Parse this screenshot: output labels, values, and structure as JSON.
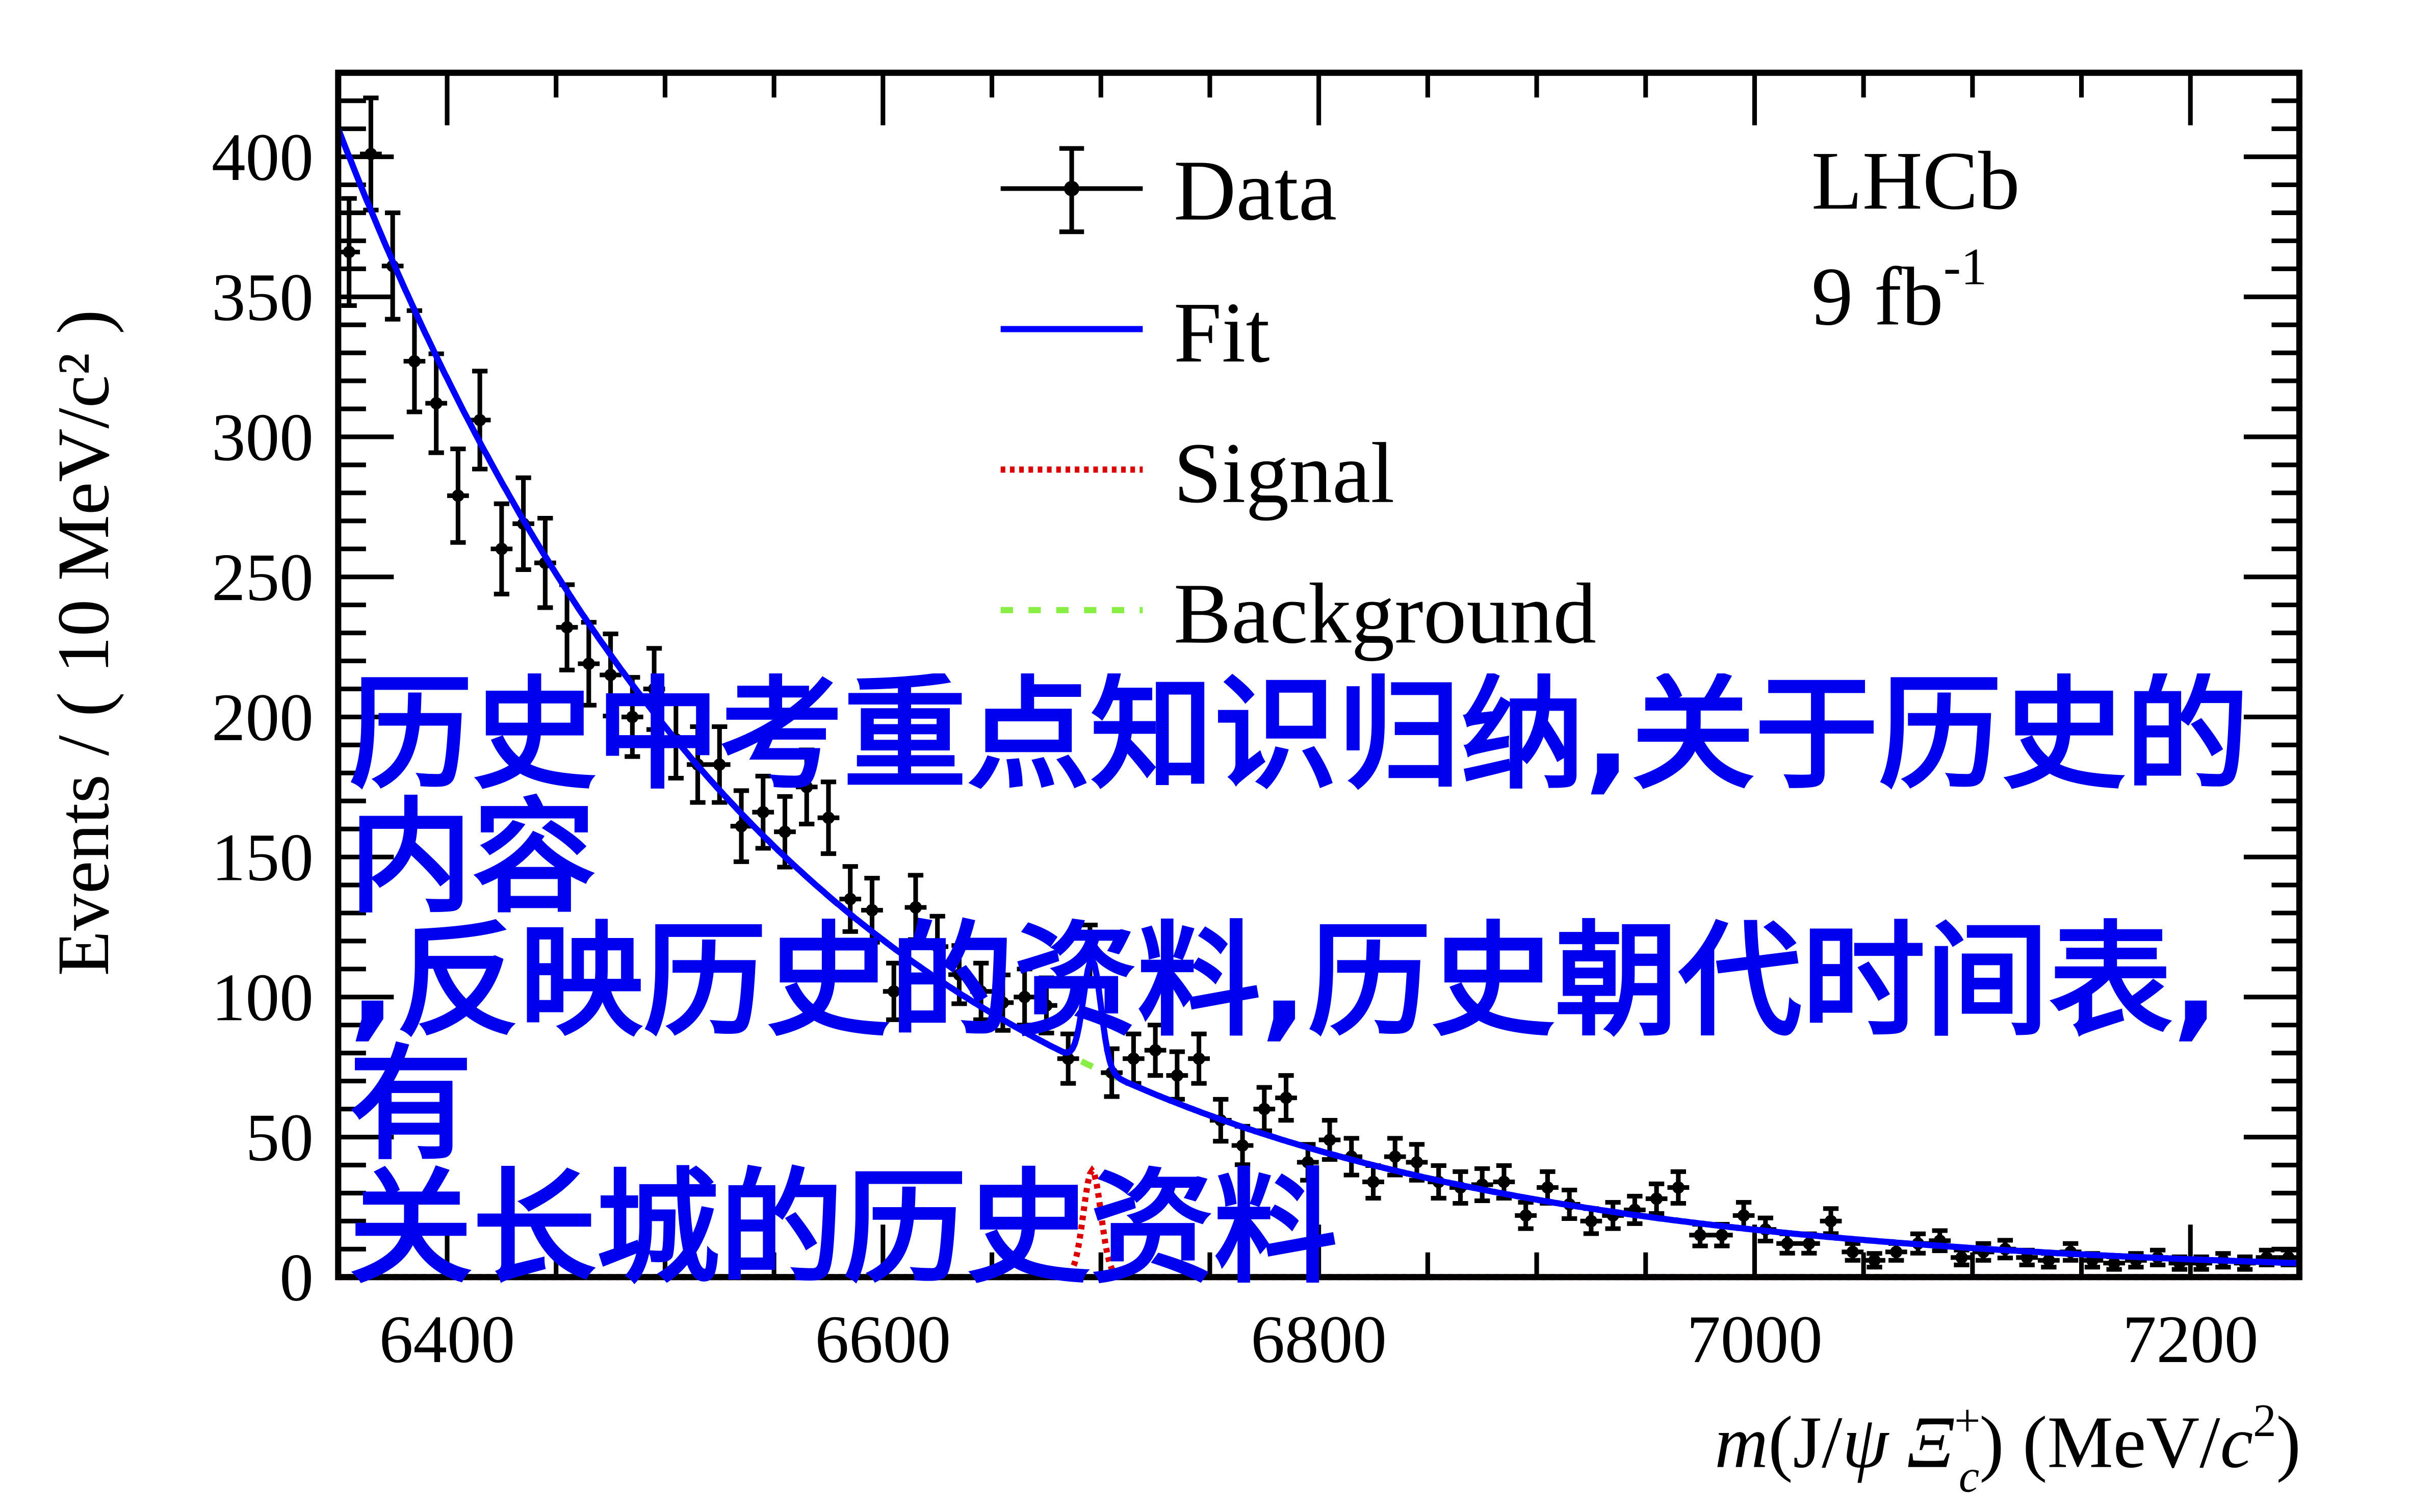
{
  "chart_data": {
    "type": "scatter",
    "title": "",
    "xlabel": "m(J/ψ Ξc+) (MeV/c²)",
    "xlabel_parts": {
      "m": "m",
      "open": "(J/",
      "psi": "ψ ",
      "xi": "Ξ",
      "sup": "+",
      "sub": "c",
      "close": ") (MeV/",
      "c": "c",
      "two": "2",
      "end": ")"
    },
    "ylabel": "Events / ( 10 MeV/c² )",
    "xlim": [
      6350,
      7250
    ],
    "ylim": [
      0,
      430
    ],
    "x_ticks": [
      6400,
      6600,
      6800,
      7000,
      7200
    ],
    "y_ticks": [
      0,
      50,
      100,
      150,
      200,
      250,
      300,
      350,
      400
    ],
    "bin_width": 10,
    "legend": {
      "position": "top-center",
      "entries": [
        {
          "label": "Data",
          "style": "points-with-errors",
          "color": "#000000"
        },
        {
          "label": "Fit",
          "style": "solid",
          "color": "#0000ff"
        },
        {
          "label": "Signal",
          "style": "dotted",
          "color": "#dd0000"
        },
        {
          "label": "Background",
          "style": "dashed",
          "color": "#88ee44"
        }
      ]
    },
    "annotation": {
      "experiment": "LHCb",
      "lumi": "9 fb",
      "lumi_exp": "-1"
    },
    "series": [
      {
        "name": "Data",
        "x": [
          6355,
          6365,
          6375,
          6385,
          6395,
          6405,
          6415,
          6425,
          6435,
          6445,
          6455,
          6465,
          6475,
          6485,
          6495,
          6505,
          6515,
          6525,
          6535,
          6545,
          6555,
          6565,
          6575,
          6585,
          6595,
          6605,
          6615,
          6625,
          6635,
          6645,
          6655,
          6665,
          6675,
          6685,
          6695,
          6705,
          6715,
          6725,
          6735,
          6745,
          6755,
          6765,
          6775,
          6785,
          6795,
          6805,
          6815,
          6825,
          6835,
          6845,
          6855,
          6865,
          6875,
          6885,
          6895,
          6905,
          6915,
          6925,
          6935,
          6945,
          6955,
          6965,
          6975,
          6985,
          6995,
          7005,
          7015,
          7025,
          7035,
          7045,
          7055,
          7065,
          7075,
          7085,
          7095,
          7105,
          7115,
          7125,
          7135,
          7145,
          7155,
          7165,
          7175,
          7185,
          7195,
          7205,
          7215,
          7225,
          7235,
          7245
        ],
        "y": [
          366,
          401,
          361,
          327,
          312,
          279,
          306,
          260,
          269,
          255,
          232,
          219,
          215,
          200,
          210,
          192,
          183,
          183,
          161,
          166,
          159,
          175,
          164,
          135,
          131,
          102,
          132,
          118,
          108,
          102,
          98,
          100,
          97,
          78,
          115,
          73,
          78,
          81,
          72,
          78,
          56,
          47,
          60,
          64,
          41,
          49,
          43,
          34,
          43,
          41,
          34,
          32,
          33,
          34,
          22,
          32,
          26,
          20,
          22,
          24,
          28,
          32,
          15,
          15,
          22,
          17,
          12,
          12,
          20,
          9,
          6,
          9,
          12,
          13,
          7,
          9,
          10,
          7,
          6,
          9,
          6,
          5,
          6,
          7,
          5,
          5,
          6,
          5,
          7,
          7
        ]
      },
      {
        "name": "Background",
        "model": "exponential",
        "amplitude_at_6350": 410,
        "decay_length_mev": 204
      },
      {
        "name": "Signal",
        "model": "gaussian",
        "mean": 6696,
        "sigma": 4,
        "peak": 38
      },
      {
        "name": "Fit",
        "model": "background+signal"
      }
    ]
  },
  "overlay_text": {
    "line1": "历史中考重点知识归纳,关于历史的内容",
    "line2": ",反映历史的资料,历史朝代时间表,有",
    "line3": "关长城的历史资料"
  }
}
